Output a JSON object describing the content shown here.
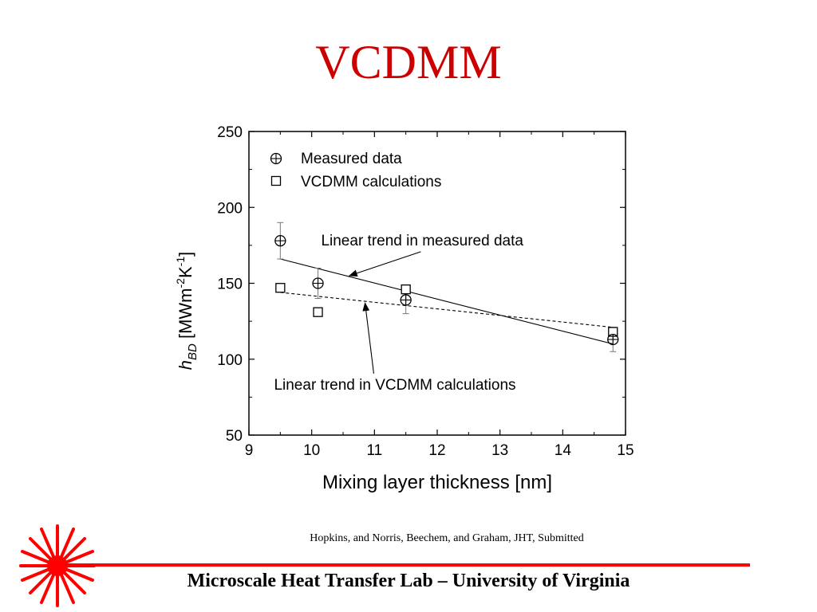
{
  "slide": {
    "title": "VCDMM",
    "citation": "Hopkins, and Norris, Beechem, and Graham, JHT,  Submitted",
    "footer": "Microscale Heat Transfer Lab – University of Virginia",
    "accent_color": "#cc0000",
    "rule_color": "#ff0000",
    "logo_icon": "red-sunburst-logo"
  },
  "chart_data": {
    "type": "scatter",
    "xlabel": "Mixing layer thickness [nm]",
    "ylabel": "h_BD [MWm^-2K^-1]",
    "xlim": [
      9,
      15
    ],
    "ylim": [
      50,
      250
    ],
    "xticks": [
      9,
      10,
      11,
      12,
      13,
      14,
      15
    ],
    "yticks": [
      50,
      100,
      150,
      200,
      250
    ],
    "grid": false,
    "legend_position": "top-left",
    "series": [
      {
        "name": "Measured data",
        "marker": "circle-plus",
        "x": [
          9.5,
          10.1,
          11.5,
          14.8
        ],
        "y": [
          178,
          150,
          139,
          113
        ],
        "err": [
          12,
          10,
          9,
          8
        ]
      },
      {
        "name": "VCDMM calculations",
        "marker": "square",
        "x": [
          9.5,
          10.1,
          11.5,
          14.8
        ],
        "y": [
          147,
          131,
          146,
          118
        ]
      }
    ],
    "trends": [
      {
        "style": "solid",
        "x": [
          9.5,
          14.8
        ],
        "y": [
          166,
          110
        ]
      },
      {
        "style": "dashed",
        "x": [
          9.5,
          14.8
        ],
        "y": [
          144,
          121
        ]
      }
    ],
    "annotations": [
      {
        "text": "Linear trend in measured data",
        "x": 10.15,
        "y": 175,
        "arrow_to": [
          10.6,
          155
        ]
      },
      {
        "text": "Linear trend in VCDMM calculations",
        "x": 9.4,
        "y": 80,
        "arrow_to": [
          10.85,
          137
        ]
      }
    ]
  }
}
